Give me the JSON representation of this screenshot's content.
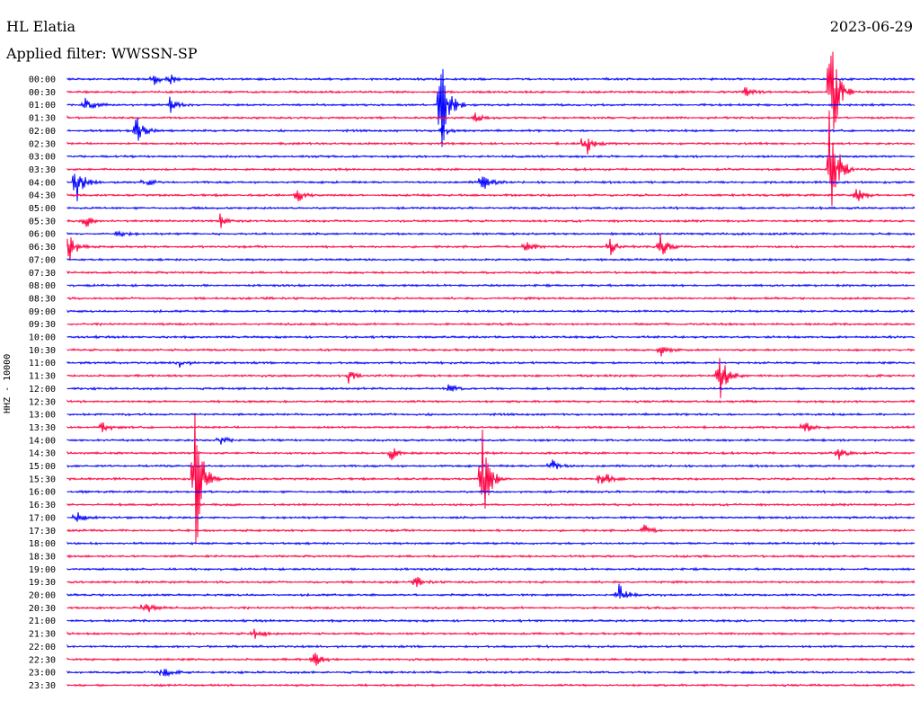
{
  "header": {
    "station": "HL Elatia",
    "filter": "Applied filter: WWSSN-SP",
    "date": "2023-06-29"
  },
  "colors": {
    "blue": "#0000ff",
    "red": "#ff0040"
  },
  "chart_data": {
    "type": "line",
    "title": "HL Elatia",
    "subtitle": "Applied filter: WWSSN-SP",
    "ylabel": "HHZ - 10000",
    "xlabel": "",
    "grid": false,
    "rows": [
      "00:00",
      "00:30",
      "01:00",
      "01:30",
      "02:00",
      "02:30",
      "03:00",
      "03:30",
      "04:00",
      "04:30",
      "05:00",
      "05:30",
      "06:00",
      "06:30",
      "07:00",
      "07:30",
      "08:00",
      "08:30",
      "09:00",
      "09:30",
      "10:00",
      "10:30",
      "11:00",
      "11:30",
      "12:00",
      "12:30",
      "13:00",
      "13:30",
      "14:00",
      "14:30",
      "15:00",
      "15:30",
      "16:00",
      "16:30",
      "17:00",
      "17:30",
      "18:00",
      "18:30",
      "19:00",
      "19:30",
      "20:00",
      "20:30",
      "21:00",
      "21:30",
      "22:00",
      "22:30",
      "23:00",
      "23:30"
    ],
    "row_colors": [
      "blue",
      "red"
    ],
    "events": [
      {
        "row": "00:00",
        "x": 0.1,
        "amp": 8
      },
      {
        "row": "00:00",
        "x": 0.12,
        "amp": 6
      },
      {
        "row": "00:30",
        "x": 0.8,
        "amp": 6
      },
      {
        "row": "00:30",
        "x": 0.9,
        "amp": 90
      },
      {
        "row": "01:00",
        "x": 0.02,
        "amp": 12
      },
      {
        "row": "01:00",
        "x": 0.12,
        "amp": 10
      },
      {
        "row": "01:00",
        "x": 0.44,
        "amp": 80
      },
      {
        "row": "01:30",
        "x": 0.48,
        "amp": 8
      },
      {
        "row": "02:00",
        "x": 0.08,
        "amp": 20
      },
      {
        "row": "02:00",
        "x": 0.44,
        "amp": 10
      },
      {
        "row": "02:30",
        "x": 0.61,
        "amp": 20
      },
      {
        "row": "03:30",
        "x": 0.9,
        "amp": 100
      },
      {
        "row": "04:00",
        "x": 0.01,
        "amp": 30
      },
      {
        "row": "04:00",
        "x": 0.09,
        "amp": 6
      },
      {
        "row": "04:00",
        "x": 0.49,
        "amp": 16
      },
      {
        "row": "04:30",
        "x": 0.27,
        "amp": 10
      },
      {
        "row": "04:30",
        "x": 0.93,
        "amp": 12
      },
      {
        "row": "05:30",
        "x": 0.02,
        "amp": 8
      },
      {
        "row": "05:30",
        "x": 0.18,
        "amp": 8
      },
      {
        "row": "06:00",
        "x": 0.06,
        "amp": 6
      },
      {
        "row": "06:30",
        "x": 0.0,
        "amp": 20
      },
      {
        "row": "06:30",
        "x": 0.54,
        "amp": 10
      },
      {
        "row": "06:30",
        "x": 0.64,
        "amp": 10
      },
      {
        "row": "06:30",
        "x": 0.7,
        "amp": 16
      },
      {
        "row": "10:30",
        "x": 0.7,
        "amp": 8
      },
      {
        "row": "11:00",
        "x": 0.13,
        "amp": 6
      },
      {
        "row": "11:30",
        "x": 0.33,
        "amp": 10
      },
      {
        "row": "11:30",
        "x": 0.77,
        "amp": 30
      },
      {
        "row": "12:00",
        "x": 0.45,
        "amp": 6
      },
      {
        "row": "13:30",
        "x": 0.04,
        "amp": 8
      },
      {
        "row": "13:30",
        "x": 0.87,
        "amp": 8
      },
      {
        "row": "14:00",
        "x": 0.18,
        "amp": 6
      },
      {
        "row": "14:30",
        "x": 0.38,
        "amp": 12
      },
      {
        "row": "14:30",
        "x": 0.91,
        "amp": 8
      },
      {
        "row": "15:00",
        "x": 0.57,
        "amp": 10
      },
      {
        "row": "15:30",
        "x": 0.15,
        "amp": 100
      },
      {
        "row": "15:30",
        "x": 0.49,
        "amp": 60
      },
      {
        "row": "15:30",
        "x": 0.63,
        "amp": 16
      },
      {
        "row": "17:00",
        "x": 0.01,
        "amp": 8
      },
      {
        "row": "17:30",
        "x": 0.68,
        "amp": 8
      },
      {
        "row": "19:30",
        "x": 0.41,
        "amp": 8
      },
      {
        "row": "20:00",
        "x": 0.65,
        "amp": 16
      },
      {
        "row": "20:30",
        "x": 0.09,
        "amp": 10
      },
      {
        "row": "21:30",
        "x": 0.22,
        "amp": 8
      },
      {
        "row": "22:30",
        "x": 0.29,
        "amp": 10
      },
      {
        "row": "23:00",
        "x": 0.11,
        "amp": 8
      }
    ]
  }
}
